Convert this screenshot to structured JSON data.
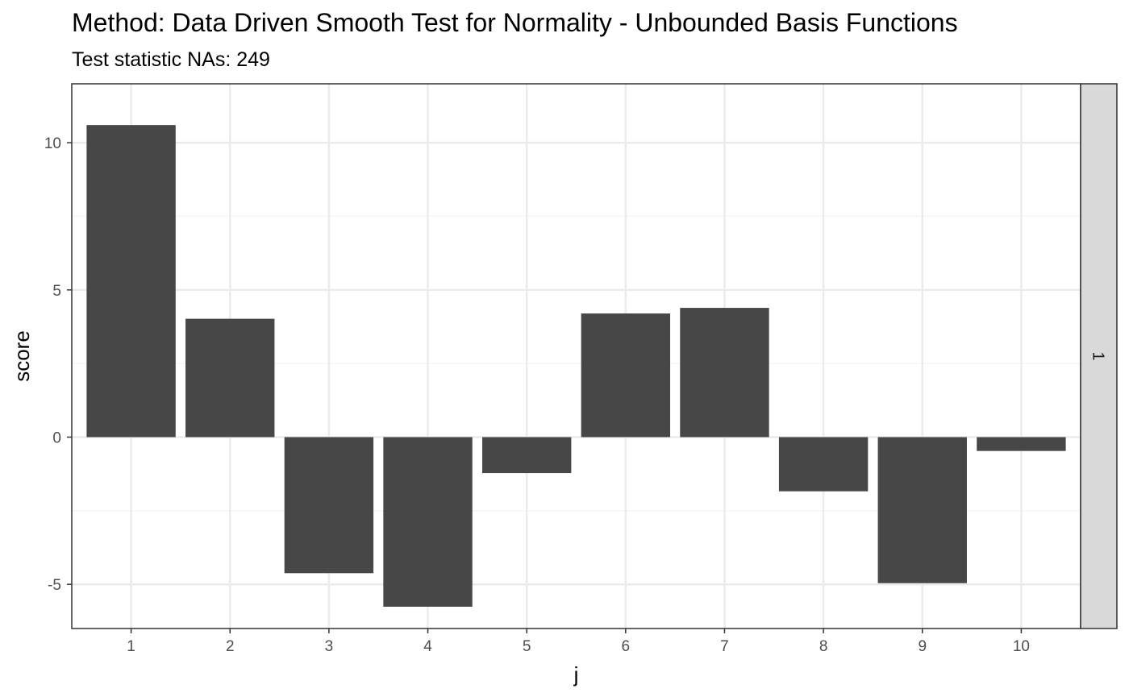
{
  "chart_data": {
    "type": "bar",
    "title": "Method: Data Driven Smooth Test for Normality - Unbounded Basis Functions",
    "subtitle": "Test statistic NAs: 249",
    "xlabel": "j",
    "ylabel": "score",
    "categories": [
      "1",
      "2",
      "3",
      "4",
      "5",
      "6",
      "7",
      "8",
      "9",
      "10"
    ],
    "values": [
      10.6,
      4.02,
      -4.62,
      -5.76,
      -1.22,
      4.2,
      4.39,
      -1.84,
      -4.96,
      -0.47
    ],
    "ylim": [
      -6.5,
      12.0
    ],
    "yticks": [
      -5,
      0,
      5,
      10
    ],
    "ytick_labels": [
      "-5",
      "0",
      "5",
      "10"
    ],
    "facet_label": "1",
    "grid": true,
    "legend": "none",
    "colors": {
      "bar": "#474747",
      "grid_major": "#ebebeb",
      "grid_minor": "#f5f5f5",
      "panel_border": "#333333",
      "strip_fill": "#d9d9d9",
      "tick_text": "#4d4d4d"
    }
  }
}
